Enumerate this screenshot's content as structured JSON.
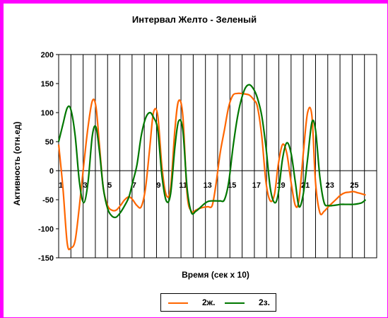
{
  "chart_data": {
    "type": "line",
    "title": "Интервал Желто - Зеленый",
    "xlabel": "Время (сек х 10)",
    "ylabel": "Активность (отн.ед)",
    "ylim": [
      -150,
      200
    ],
    "yticks": [
      200,
      150,
      100,
      50,
      0,
      -50,
      -100,
      -150
    ],
    "xlim": [
      1,
      27
    ],
    "xtick_labels": [
      "1",
      "3",
      "5",
      "7",
      "9",
      "11",
      "13",
      "15",
      "17",
      "19",
      "21",
      "23",
      "25"
    ],
    "grid": "vertical",
    "legend_position": "bottom",
    "series": [
      {
        "name": "2ж.",
        "color": "#ff6600",
        "x": [
          1.0,
          1.35,
          1.7,
          2.0,
          2.35,
          2.7,
          3.05,
          3.4,
          3.75,
          4.05,
          4.35,
          4.65,
          5.0,
          5.35,
          5.7,
          6.05,
          6.4,
          6.75,
          7.05,
          7.4,
          7.75,
          8.1,
          8.45,
          8.75,
          9.1,
          9.45,
          9.8,
          10.15,
          10.5,
          10.8,
          11.15,
          11.5,
          11.85,
          12.2,
          12.5,
          12.85,
          13.2,
          13.55,
          13.85,
          14.2,
          14.55,
          14.9,
          15.25,
          15.6,
          15.9,
          16.25,
          16.6,
          16.95,
          17.25,
          17.6,
          17.95,
          18.3,
          18.65,
          18.95,
          19.3,
          19.65,
          20.0,
          20.35,
          20.65,
          21.0,
          21.35,
          21.7,
          22.0,
          22.35,
          22.7,
          23.05,
          23.4,
          23.75,
          24.05,
          24.4,
          24.75,
          25.1,
          25.45,
          25.8,
          26.1
        ],
        "values": [
          45,
          -30,
          -125,
          -133,
          -120,
          -60,
          10,
          75,
          120,
          110,
          40,
          -30,
          -60,
          -68,
          -68,
          -60,
          -50,
          -45,
          -50,
          -60,
          -62,
          -30,
          40,
          100,
          95,
          5,
          -42,
          -30,
          70,
          120,
          95,
          -40,
          -70,
          -68,
          -65,
          -63,
          -62,
          -60,
          -25,
          30,
          70,
          110,
          130,
          133,
          133,
          132,
          130,
          122,
          110,
          60,
          -20,
          -52,
          -40,
          10,
          45,
          30,
          -20,
          -60,
          -50,
          30,
          100,
          95,
          -20,
          -72,
          -70,
          -62,
          -55,
          -48,
          -42,
          -38,
          -37,
          -36,
          -38,
          -40,
          -42
        ]
      },
      {
        "name": "2з.",
        "color": "#007700",
        "x": [
          1.0,
          1.35,
          1.7,
          2.0,
          2.35,
          2.7,
          3.05,
          3.4,
          3.75,
          4.05,
          4.35,
          4.65,
          5.0,
          5.35,
          5.7,
          6.05,
          6.4,
          6.75,
          7.05,
          7.4,
          7.75,
          8.1,
          8.45,
          8.75,
          9.1,
          9.45,
          9.8,
          10.15,
          10.5,
          10.8,
          11.15,
          11.5,
          11.85,
          12.2,
          12.5,
          12.85,
          13.2,
          13.55,
          13.85,
          14.2,
          14.55,
          14.9,
          15.25,
          15.6,
          15.9,
          16.25,
          16.6,
          16.95,
          17.25,
          17.6,
          17.95,
          18.3,
          18.65,
          18.95,
          19.3,
          19.65,
          20.0,
          20.35,
          20.65,
          21.0,
          21.35,
          21.7,
          22.0,
          22.35,
          22.7,
          23.05,
          23.4,
          23.75,
          24.05,
          24.4,
          24.75,
          25.1,
          25.45,
          25.8,
          26.1
        ],
        "values": [
          50,
          80,
          108,
          105,
          60,
          -20,
          -55,
          -20,
          60,
          75,
          30,
          -30,
          -65,
          -78,
          -80,
          -72,
          -60,
          -45,
          -20,
          10,
          60,
          90,
          100,
          92,
          70,
          -10,
          -52,
          -40,
          40,
          85,
          70,
          -30,
          -72,
          -70,
          -65,
          -58,
          -53,
          -52,
          -52,
          -52,
          -50,
          -20,
          40,
          90,
          120,
          142,
          148,
          140,
          125,
          95,
          40,
          -30,
          -55,
          -40,
          20,
          48,
          30,
          -20,
          -62,
          -40,
          20,
          83,
          70,
          -10,
          -55,
          -60,
          -60,
          -59,
          -58,
          -58,
          -58,
          -58,
          -57,
          -55,
          -50
        ]
      }
    ]
  }
}
